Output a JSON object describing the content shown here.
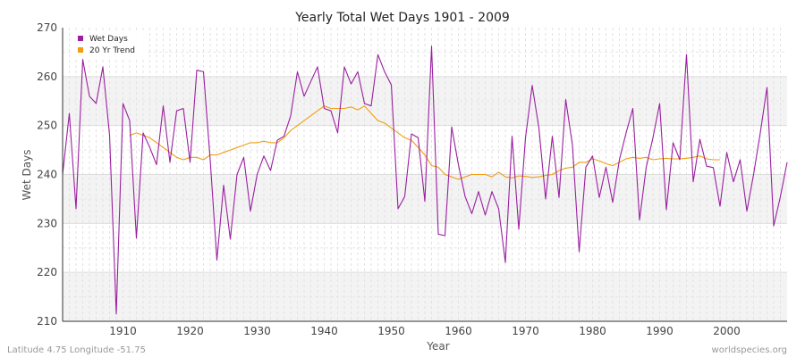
{
  "chart_data": {
    "type": "line",
    "title": "Yearly Total Wet Days 1901 - 2009",
    "xlabel": "Year",
    "ylabel": "Wet Days",
    "xlim": [
      1901,
      2009
    ],
    "ylim": [
      210,
      270
    ],
    "x_ticks": [
      1910,
      1920,
      1930,
      1940,
      1950,
      1960,
      1970,
      1980,
      1990,
      2000
    ],
    "y_ticks": [
      210,
      220,
      230,
      240,
      250,
      260,
      270
    ],
    "grid": true,
    "legend_position": "top-left",
    "series": [
      {
        "name": "Wet Days",
        "color": "#9b1fa0",
        "x": [
          1901,
          1902,
          1903,
          1904,
          1905,
          1906,
          1907,
          1908,
          1909,
          1910,
          1911,
          1912,
          1913,
          1914,
          1915,
          1916,
          1917,
          1918,
          1919,
          1920,
          1921,
          1922,
          1923,
          1924,
          1925,
          1926,
          1927,
          1928,
          1929,
          1930,
          1931,
          1932,
          1933,
          1934,
          1935,
          1936,
          1937,
          1938,
          1939,
          1940,
          1941,
          1942,
          1943,
          1944,
          1945,
          1946,
          1947,
          1948,
          1949,
          1950,
          1951,
          1952,
          1953,
          1954,
          1955,
          1956,
          1957,
          1958,
          1959,
          1960,
          1961,
          1962,
          1963,
          1964,
          1965,
          1966,
          1967,
          1968,
          1969,
          1970,
          1971,
          1972,
          1973,
          1974,
          1975,
          1976,
          1977,
          1978,
          1979,
          1980,
          1981,
          1982,
          1983,
          1984,
          1985,
          1986,
          1987,
          1988,
          1989,
          1990,
          1991,
          1992,
          1993,
          1994,
          1995,
          1996,
          1997,
          1998,
          1999,
          2000,
          2001,
          2002,
          2003,
          2004,
          2005,
          2006,
          2007,
          2008,
          2009
        ],
        "values": [
          240,
          252.5,
          233,
          263.5,
          256,
          254.5,
          262,
          248,
          211.5,
          254.5,
          251,
          227,
          248.5,
          245.5,
          242,
          254,
          242.5,
          253,
          253.5,
          242.5,
          261.3,
          261,
          243,
          222.5,
          237.8,
          226.8,
          240,
          243.5,
          232.5,
          240,
          243.8,
          240.8,
          247,
          247.8,
          252,
          261,
          256,
          259,
          262,
          253.5,
          253,
          248.5,
          262,
          258.5,
          261,
          254.5,
          254,
          264.5,
          261,
          258.3,
          233,
          235.5,
          248.3,
          247.5,
          234.5,
          266.2,
          227.8,
          227.5,
          249.7,
          242,
          235.5,
          232,
          236.5,
          231.7,
          236.5,
          233,
          222,
          247.8,
          228.8,
          247.5,
          258.2,
          249.5,
          235,
          247.8,
          235.3,
          255.3,
          246,
          224.2,
          241.5,
          243.8,
          235.3,
          241.5,
          234.3,
          243,
          248.5,
          253.5,
          230.7,
          241.5,
          247.5,
          254.5,
          232.8,
          246.5,
          243,
          264.5,
          238.5,
          247.2,
          241.7,
          241.4,
          233.5,
          244.5,
          238.5,
          243,
          232.5,
          240,
          248.5,
          257.8,
          229.5,
          235.5,
          242.5
        ]
      },
      {
        "name": "20 Yr Trend",
        "color": "#f39c12",
        "x": [
          1911,
          1912,
          1913,
          1914,
          1915,
          1916,
          1917,
          1918,
          1919,
          1920,
          1921,
          1922,
          1923,
          1924,
          1925,
          1926,
          1927,
          1928,
          1929,
          1930,
          1931,
          1932,
          1933,
          1934,
          1935,
          1936,
          1937,
          1938,
          1939,
          1940,
          1941,
          1942,
          1943,
          1944,
          1945,
          1946,
          1947,
          1948,
          1949,
          1950,
          1951,
          1952,
          1953,
          1954,
          1955,
          1956,
          1957,
          1958,
          1959,
          1960,
          1961,
          1962,
          1963,
          1964,
          1965,
          1966,
          1967,
          1968,
          1969,
          1970,
          1971,
          1972,
          1973,
          1974,
          1975,
          1976,
          1977,
          1978,
          1979,
          1980,
          1981,
          1982,
          1983,
          1984,
          1985,
          1986,
          1987,
          1988,
          1989,
          1990,
          1991,
          1992,
          1993,
          1994,
          1995,
          1996,
          1997,
          1998,
          1999
        ],
        "values": [
          248,
          248.5,
          248,
          247.5,
          246.5,
          245.5,
          244.5,
          243.5,
          243,
          243.5,
          243.5,
          243,
          244,
          244,
          244.5,
          245,
          245.5,
          246,
          246.5,
          246.5,
          246.8,
          246.5,
          246.5,
          247.5,
          249,
          250,
          251,
          252,
          253,
          254,
          253.5,
          253.5,
          253.5,
          253.8,
          253.2,
          254,
          252.5,
          251,
          250.5,
          249.5,
          248.5,
          247.5,
          247,
          245.5,
          244,
          241.8,
          241.5,
          240,
          239.5,
          239,
          239.5,
          240,
          240,
          240,
          239.5,
          240.5,
          239.5,
          239.3,
          239.7,
          239.6,
          239.4,
          239.5,
          239.8,
          240,
          240.8,
          241.3,
          241.5,
          242.5,
          242.5,
          243.2,
          242.8,
          242.2,
          241.8,
          242.5,
          243.2,
          243.5,
          243.3,
          243.5,
          243,
          243.2,
          243.3,
          243.2,
          243.2,
          243.3,
          243.5,
          243.8,
          243.2,
          243,
          243
        ]
      }
    ]
  },
  "footer": {
    "left": "Latitude 4.75 Longitude -51.75",
    "right": "worldspecies.org"
  }
}
